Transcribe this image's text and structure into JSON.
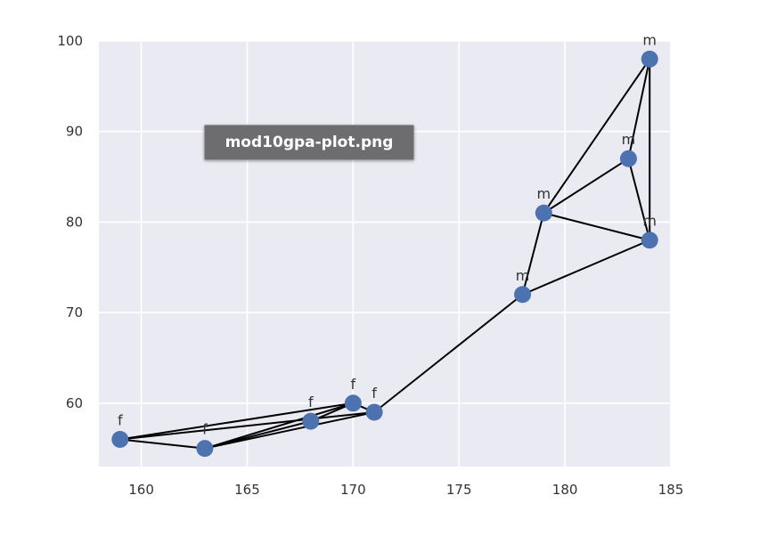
{
  "tooltip": {
    "filename": "mod10gpa-plot.png"
  },
  "colors": {
    "plot_background": "#eaeaf2",
    "grid": "#ffffff",
    "point": "#4c72b0",
    "line": "#000000"
  },
  "chart_data": {
    "type": "scatter",
    "title": "",
    "xlabel": "",
    "ylabel": "",
    "xlim": [
      158,
      185
    ],
    "ylim": [
      53,
      100
    ],
    "xticks": [
      160,
      165,
      170,
      175,
      180,
      185
    ],
    "yticks": [
      60,
      70,
      80,
      90,
      100
    ],
    "grid": true,
    "points": [
      {
        "x": 159,
        "y": 56,
        "label": "f"
      },
      {
        "x": 163,
        "y": 55,
        "label": "f"
      },
      {
        "x": 168,
        "y": 58,
        "label": "f"
      },
      {
        "x": 170,
        "y": 60,
        "label": "f"
      },
      {
        "x": 171,
        "y": 59,
        "label": "f"
      },
      {
        "x": 178,
        "y": 72,
        "label": "m"
      },
      {
        "x": 179,
        "y": 81,
        "label": "m"
      },
      {
        "x": 183,
        "y": 87,
        "label": "m"
      },
      {
        "x": 184,
        "y": 98,
        "label": "m"
      },
      {
        "x": 184,
        "y": 78,
        "label": "m"
      }
    ],
    "edges": [
      [
        0,
        3
      ],
      [
        0,
        4
      ],
      [
        0,
        1
      ],
      [
        1,
        3
      ],
      [
        1,
        4
      ],
      [
        1,
        2
      ],
      [
        2,
        3
      ],
      [
        3,
        4
      ],
      [
        4,
        5
      ],
      [
        5,
        9
      ],
      [
        5,
        6
      ],
      [
        6,
        9
      ],
      [
        6,
        7
      ],
      [
        6,
        8
      ],
      [
        7,
        8
      ],
      [
        7,
        9
      ],
      [
        8,
        9
      ]
    ]
  }
}
